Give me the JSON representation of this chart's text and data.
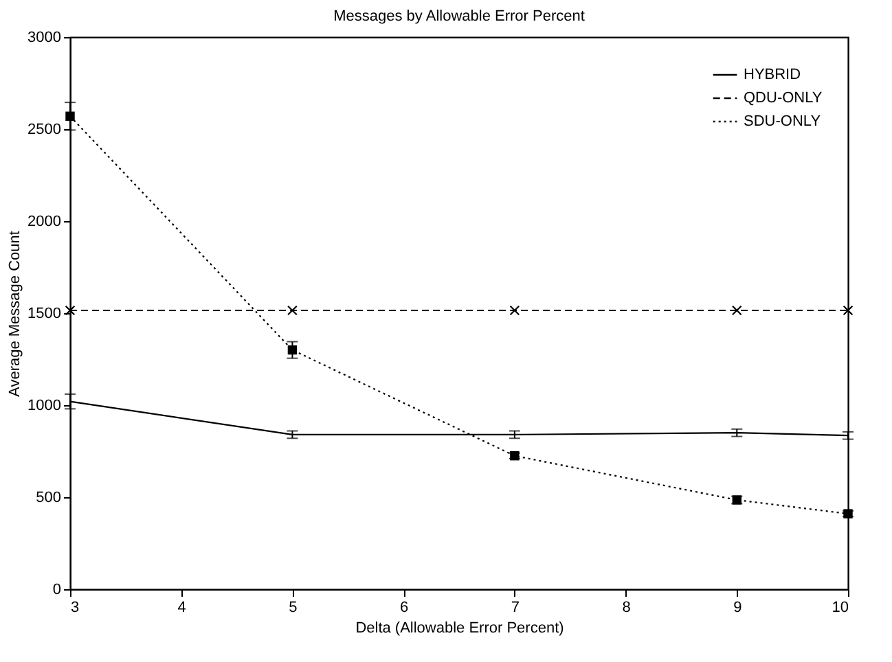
{
  "chart_data": {
    "type": "line",
    "title": "Messages by Allowable Error Percent",
    "xlabel": "Delta (Allowable Error Percent)",
    "ylabel": "Average Message Count",
    "x": [
      3,
      5,
      7,
      9,
      10
    ],
    "xlim": [
      3,
      10
    ],
    "xticks": [
      3,
      4,
      5,
      6,
      7,
      8,
      9,
      10
    ],
    "ylim": [
      0,
      3000
    ],
    "yticks": [
      0,
      500,
      1000,
      1500,
      2000,
      2500,
      3000
    ],
    "series": [
      {
        "name": "HYBRID",
        "color": "#000000",
        "values": [
          1020,
          840,
          840,
          850,
          835
        ],
        "errors": [
          40,
          20,
          20,
          20,
          20
        ],
        "line_style": "solid",
        "marker": "none"
      },
      {
        "name": "QDU-ONLY",
        "color": "#000000",
        "values": [
          1515,
          1515,
          1515,
          1515,
          1515
        ],
        "line_style": "dashed",
        "marker": "cross"
      },
      {
        "name": "SDU-ONLY",
        "color": "#000000",
        "values": [
          2570,
          1300,
          725,
          485,
          410
        ],
        "errors": [
          75,
          45,
          15,
          20,
          15
        ],
        "line_style": "dotted",
        "marker": "square"
      }
    ],
    "grid": false,
    "legend": "top right"
  }
}
